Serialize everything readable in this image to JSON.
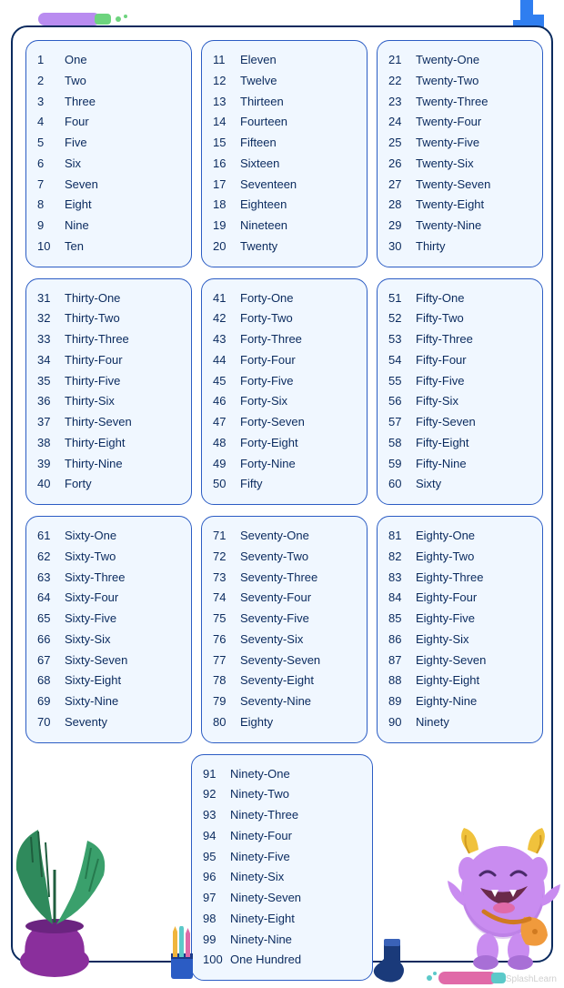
{
  "card": {
    "border_color": "#0a2a5e",
    "box_border_color": "#2b5cc4",
    "box_bg": "#f0f7ff",
    "text_color": "#0a2a5e"
  },
  "watermark": "SplashLearn",
  "groups": [
    [
      {
        "n": "1",
        "w": "One"
      },
      {
        "n": "2",
        "w": "Two"
      },
      {
        "n": "3",
        "w": "Three"
      },
      {
        "n": "4",
        "w": "Four"
      },
      {
        "n": "5",
        "w": "Five"
      },
      {
        "n": "6",
        "w": "Six"
      },
      {
        "n": "7",
        "w": "Seven"
      },
      {
        "n": "8",
        "w": "Eight"
      },
      {
        "n": "9",
        "w": "Nine"
      },
      {
        "n": "10",
        "w": "Ten"
      }
    ],
    [
      {
        "n": "11",
        "w": "Eleven"
      },
      {
        "n": "12",
        "w": "Twelve"
      },
      {
        "n": "13",
        "w": "Thirteen"
      },
      {
        "n": "14",
        "w": "Fourteen"
      },
      {
        "n": "15",
        "w": "Fifteen"
      },
      {
        "n": "16",
        "w": "Sixteen"
      },
      {
        "n": "17",
        "w": "Seventeen"
      },
      {
        "n": "18",
        "w": "Eighteen"
      },
      {
        "n": "19",
        "w": "Nineteen"
      },
      {
        "n": "20",
        "w": "Twenty"
      }
    ],
    [
      {
        "n": "21",
        "w": "Twenty-One"
      },
      {
        "n": "22",
        "w": "Twenty-Two"
      },
      {
        "n": "23",
        "w": "Twenty-Three"
      },
      {
        "n": "24",
        "w": "Twenty-Four"
      },
      {
        "n": "25",
        "w": "Twenty-Five"
      },
      {
        "n": "26",
        "w": "Twenty-Six"
      },
      {
        "n": "27",
        "w": "Twenty-Seven"
      },
      {
        "n": "28",
        "w": "Twenty-Eight"
      },
      {
        "n": "29",
        "w": "Twenty-Nine"
      },
      {
        "n": "30",
        "w": "Thirty"
      }
    ],
    [
      {
        "n": "31",
        "w": "Thirty-One"
      },
      {
        "n": "32",
        "w": "Thirty-Two"
      },
      {
        "n": "33",
        "w": "Thirty-Three"
      },
      {
        "n": "34",
        "w": "Thirty-Four"
      },
      {
        "n": "35",
        "w": "Thirty-Five"
      },
      {
        "n": "36",
        "w": "Thirty-Six"
      },
      {
        "n": "37",
        "w": "Thirty-Seven"
      },
      {
        "n": "38",
        "w": "Thirty-Eight"
      },
      {
        "n": "39",
        "w": "Thirty-Nine"
      },
      {
        "n": "40",
        "w": "Forty"
      }
    ],
    [
      {
        "n": "41",
        "w": "Forty-One"
      },
      {
        "n": "42",
        "w": "Forty-Two"
      },
      {
        "n": "43",
        "w": "Forty-Three"
      },
      {
        "n": "44",
        "w": "Forty-Four"
      },
      {
        "n": "45",
        "w": "Forty-Five"
      },
      {
        "n": "46",
        "w": "Forty-Six"
      },
      {
        "n": "47",
        "w": "Forty-Seven"
      },
      {
        "n": "48",
        "w": "Forty-Eight"
      },
      {
        "n": "49",
        "w": "Forty-Nine"
      },
      {
        "n": "50",
        "w": "Fifty"
      }
    ],
    [
      {
        "n": "51",
        "w": "Fifty-One"
      },
      {
        "n": "52",
        "w": "Fifty-Two"
      },
      {
        "n": "53",
        "w": "Fifty-Three"
      },
      {
        "n": "54",
        "w": "Fifty-Four"
      },
      {
        "n": "55",
        "w": "Fifty-Five"
      },
      {
        "n": "56",
        "w": "Fifty-Six"
      },
      {
        "n": "57",
        "w": "Fifty-Seven"
      },
      {
        "n": "58",
        "w": "Fifty-Eight"
      },
      {
        "n": "59",
        "w": "Fifty-Nine"
      },
      {
        "n": "60",
        "w": "Sixty"
      }
    ],
    [
      {
        "n": "61",
        "w": "Sixty-One"
      },
      {
        "n": "62",
        "w": "Sixty-Two"
      },
      {
        "n": "63",
        "w": "Sixty-Three"
      },
      {
        "n": "64",
        "w": "Sixty-Four"
      },
      {
        "n": "65",
        "w": "Sixty-Five"
      },
      {
        "n": "66",
        "w": "Sixty-Six"
      },
      {
        "n": "67",
        "w": "Sixty-Seven"
      },
      {
        "n": "68",
        "w": "Sixty-Eight"
      },
      {
        "n": "69",
        "w": "Sixty-Nine"
      },
      {
        "n": "70",
        "w": "Seventy"
      }
    ],
    [
      {
        "n": "71",
        "w": "Seventy-One"
      },
      {
        "n": "72",
        "w": "Seventy-Two"
      },
      {
        "n": "73",
        "w": "Seventy-Three"
      },
      {
        "n": "74",
        "w": "Seventy-Four"
      },
      {
        "n": "75",
        "w": "Seventy-Five"
      },
      {
        "n": "76",
        "w": "Seventy-Six"
      },
      {
        "n": "77",
        "w": "Seventy-Seven"
      },
      {
        "n": "78",
        "w": "Seventy-Eight"
      },
      {
        "n": "79",
        "w": "Seventy-Nine"
      },
      {
        "n": "80",
        "w": "Eighty"
      }
    ],
    [
      {
        "n": "81",
        "w": "Eighty-One"
      },
      {
        "n": "82",
        "w": "Eighty-Two"
      },
      {
        "n": "83",
        "w": "Eighty-Three"
      },
      {
        "n": "84",
        "w": "Eighty-Four"
      },
      {
        "n": "85",
        "w": "Eighty-Five"
      },
      {
        "n": "86",
        "w": "Eighty-Six"
      },
      {
        "n": "87",
        "w": "Eighty-Seven"
      },
      {
        "n": "88",
        "w": "Eighty-Eight"
      },
      {
        "n": "89",
        "w": "Eighty-Nine"
      },
      {
        "n": "90",
        "w": "Ninety"
      }
    ],
    [
      {
        "n": "91",
        "w": "Ninety-One"
      },
      {
        "n": "92",
        "w": "Ninety-Two"
      },
      {
        "n": "93",
        "w": "Ninety-Three"
      },
      {
        "n": "94",
        "w": "Ninety-Four"
      },
      {
        "n": "95",
        "w": "Ninety-Five"
      },
      {
        "n": "96",
        "w": "Ninety-Six"
      },
      {
        "n": "97",
        "w": "Ninety-Seven"
      },
      {
        "n": "98",
        "w": "Ninety-Eight"
      },
      {
        "n": "99",
        "w": "Ninety-Nine"
      },
      {
        "n": "100",
        "w": "One Hundred"
      }
    ]
  ],
  "decorations": {
    "marker_body": "#b98cf0",
    "marker_tip": "#6dd47e",
    "shape_blue": "#2f7ef0",
    "plant_pot": "#8a2f9c",
    "plant_leaf": "#2f8a5c",
    "pencil_cup": "#2b5cc4",
    "pencil_yellow": "#f0b53c",
    "pencil_teal": "#5cc9c9",
    "pencil_pink": "#e06aa8",
    "sock": "#1a3a7a",
    "marker_pink": "#e06aa8",
    "monster_body": "#c98cf0",
    "monster_shadow": "#a86fd6",
    "monster_horn": "#f0c23c",
    "monster_bag": "#f09a3c"
  }
}
